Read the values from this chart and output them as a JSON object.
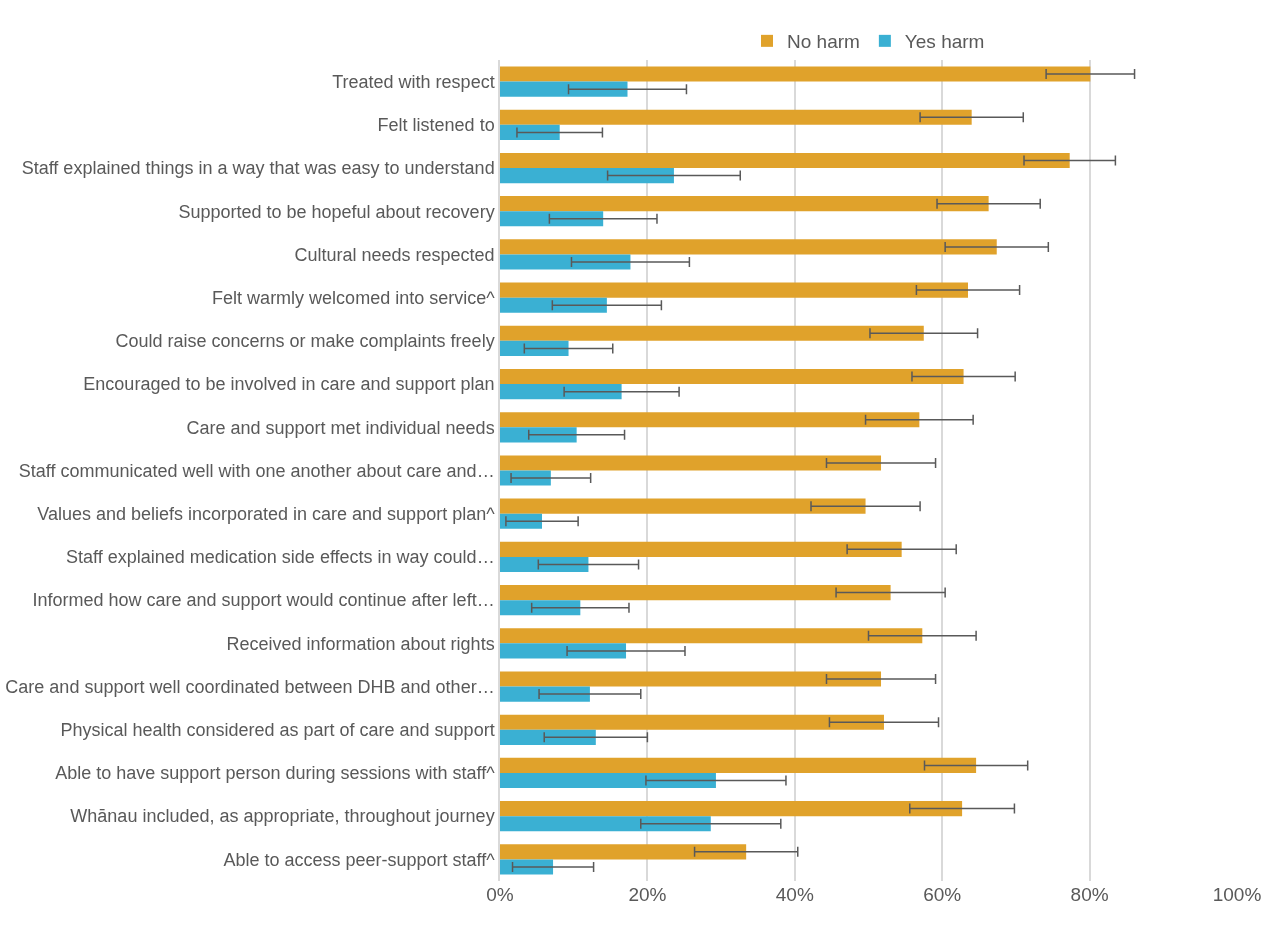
{
  "chart_data": {
    "type": "bar",
    "orientation": "horizontal",
    "legend": "top",
    "grid": "x",
    "categories": [
      "Treated with respect",
      "Felt listened to",
      "Staff explained things in a way that was easy to understand",
      "Supported to be hopeful about recovery",
      "Cultural needs respected",
      "Felt warmly welcomed into service^",
      "Could raise concerns or make complaints freely",
      "Encouraged to be involved in care and support plan",
      "Care and support met individual needs",
      "Staff communicated well with one another about care and…",
      "Values and beliefs incorporated in care and support plan^",
      "Staff explained medication side effects in way could…",
      "Informed how care and support would continue after left…",
      "Received information about rights",
      "Care and support well coordinated between DHB and other…",
      "Physical health considered as part of care and support",
      "Able to have support person during sessions with staff^",
      "Whānau included, as appropriate, throughout journey",
      "Able to access peer-support staff^"
    ],
    "series": [
      {
        "name": "No harm",
        "color": "#e0a22b",
        "values": [
          80.1,
          64.0,
          77.3,
          66.3,
          67.4,
          63.5,
          57.5,
          62.9,
          56.9,
          51.7,
          49.6,
          54.5,
          53.0,
          57.3,
          51.7,
          52.1,
          64.6,
          62.7,
          33.4
        ],
        "errors": [
          6,
          7,
          6.2,
          7,
          7,
          7,
          7.3,
          7,
          7.3,
          7.4,
          7.4,
          7.4,
          7.4,
          7.3,
          7.4,
          7.4,
          7,
          7.1,
          7
        ]
      },
      {
        "name": "Yes harm",
        "color": "#3ab0d3",
        "values": [
          17.3,
          8.1,
          23.6,
          14.0,
          17.7,
          14.5,
          9.3,
          16.5,
          10.4,
          6.9,
          5.7,
          12.0,
          10.9,
          17.1,
          12.2,
          13.0,
          29.3,
          28.6,
          7.2
        ],
        "errors": [
          8,
          5.8,
          9,
          7.3,
          8,
          7.4,
          6,
          7.8,
          6.5,
          5.4,
          4.9,
          6.8,
          6.6,
          8,
          6.9,
          7,
          9.5,
          9.5,
          5.5
        ]
      }
    ],
    "xlim": [
      0,
      100
    ],
    "xticks": [
      {
        "value": 0,
        "label": "0%"
      },
      {
        "value": 20,
        "label": "20%"
      },
      {
        "value": 40,
        "label": "40%"
      },
      {
        "value": 60,
        "label": "60%"
      },
      {
        "value": 80,
        "label": "80%"
      },
      {
        "value": 100,
        "label": "100%"
      }
    ]
  }
}
